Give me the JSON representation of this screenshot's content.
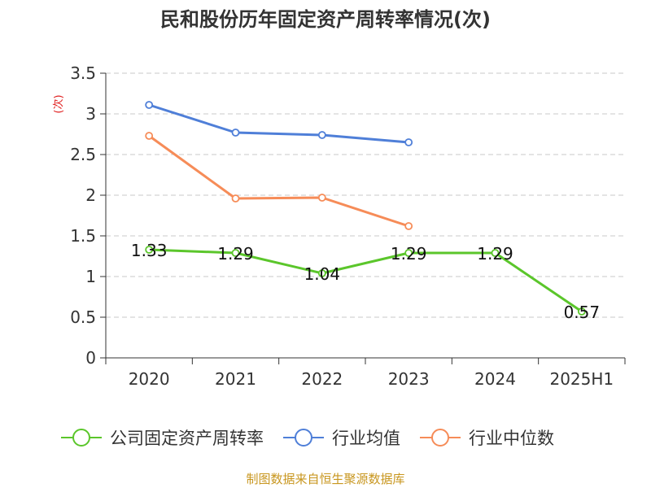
{
  "title": "民和股份历年固定资产周转率情况(次)",
  "unit_label": "(次)",
  "source": "制图数据来自恒生聚源数据库",
  "colors": {
    "series_0": "#5bc62b",
    "series_1": "#4f7fd8",
    "series_2": "#f68c58",
    "grid": "#c8c8c8",
    "axis": "#333333"
  },
  "chart_data": {
    "type": "line",
    "categories": [
      "2020",
      "2021",
      "2022",
      "2023",
      "2024",
      "2025H1"
    ],
    "ylim": [
      0,
      3.5
    ],
    "yticks": [
      0,
      0.5,
      1,
      1.5,
      2,
      2.5,
      3,
      3.5
    ],
    "ytick_labels": [
      "0",
      "0.5",
      "1",
      "1.5",
      "2",
      "2.5",
      "3",
      "3.5"
    ],
    "grid": true,
    "legend_position": "bottom",
    "series": [
      {
        "name": "公司固定资产周转率",
        "values": [
          1.33,
          1.29,
          1.04,
          1.29,
          1.29,
          0.57
        ],
        "labels": [
          "1.33",
          "1.29",
          "1.04",
          "1.29",
          "1.29",
          "0.57"
        ]
      },
      {
        "name": "行业均值",
        "values": [
          3.11,
          2.77,
          2.74,
          2.65,
          null,
          null
        ]
      },
      {
        "name": "行业中位数",
        "values": [
          2.73,
          1.96,
          1.97,
          1.62,
          null,
          null
        ]
      }
    ]
  }
}
